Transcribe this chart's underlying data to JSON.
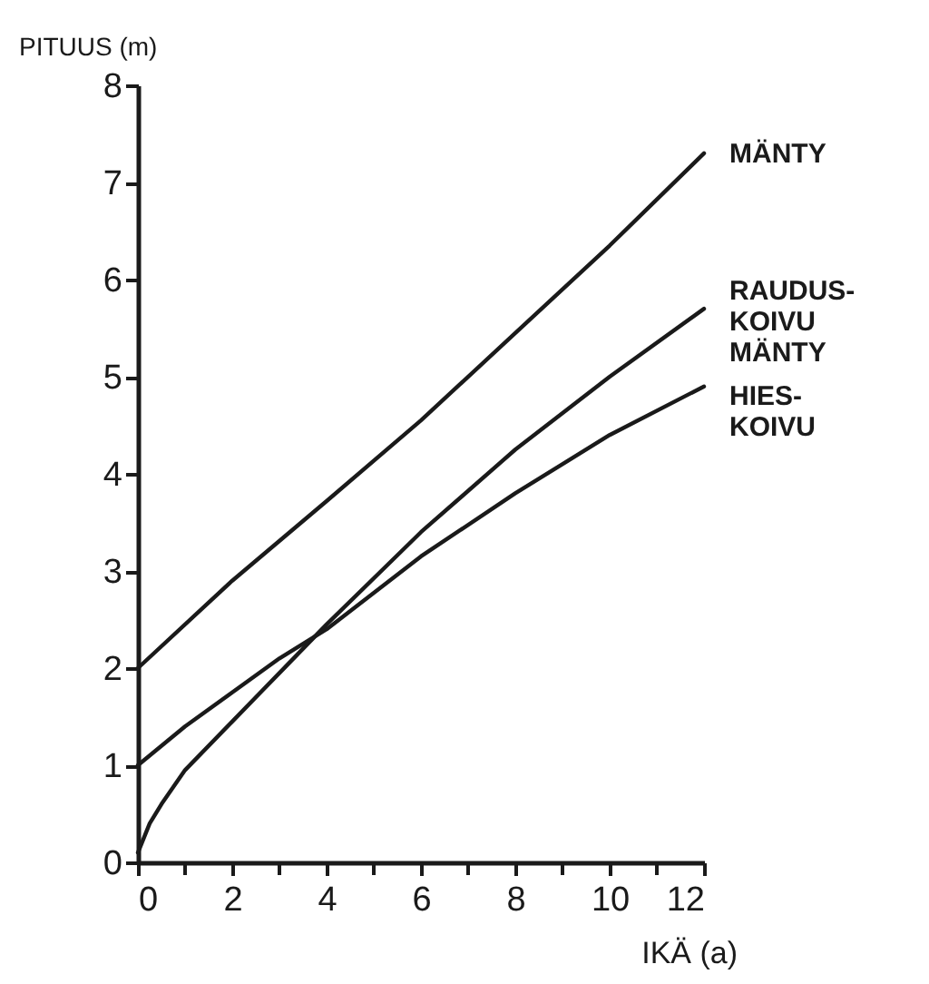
{
  "chart_data": {
    "type": "line",
    "xlabel": "IKÄ (a)",
    "ylabel": "PITUUS (m)",
    "xlim": [
      0,
      12
    ],
    "ylim": [
      0,
      8
    ],
    "xticks": [
      0,
      {
        "value": 1,
        "label": null
      },
      2,
      {
        "value": 3,
        "label": null
      },
      4,
      {
        "value": 5,
        "label": null
      },
      6,
      {
        "value": 7,
        "label": null
      },
      8,
      {
        "value": 9,
        "label": null
      },
      10,
      {
        "value": 11,
        "label": null
      },
      12
    ],
    "yticks": [
      0,
      1,
      2,
      3,
      4,
      5,
      6,
      7,
      8
    ],
    "grid": false,
    "marker": "none",
    "line_style": "solid",
    "series": [
      {
        "name": "MÄNTY",
        "color": "#1a1a1a",
        "x": [
          0,
          2,
          4,
          6,
          8,
          10,
          12
        ],
        "values": [
          2,
          2.9,
          3.72,
          4.55,
          5.45,
          6.35,
          7.3
        ]
      },
      {
        "name": "RAUDUS-\nKOIVU\nMÄNTY",
        "color": "#1a1a1a",
        "x": [
          0,
          0.25,
          0.5,
          1,
          2,
          3,
          4,
          6,
          8,
          10,
          12
        ],
        "values": [
          0.1,
          0.4,
          0.6,
          0.95,
          1.45,
          1.95,
          2.45,
          3.4,
          4.25,
          5.0,
          5.7
        ]
      },
      {
        "name": "HIES-\nKOIVU",
        "color": "#1a1a1a",
        "x": [
          0,
          1,
          2,
          3,
          4,
          6,
          8,
          10,
          12
        ],
        "values": [
          1,
          1.4,
          1.75,
          2.1,
          2.4,
          3.15,
          3.8,
          4.4,
          4.9
        ]
      }
    ]
  }
}
